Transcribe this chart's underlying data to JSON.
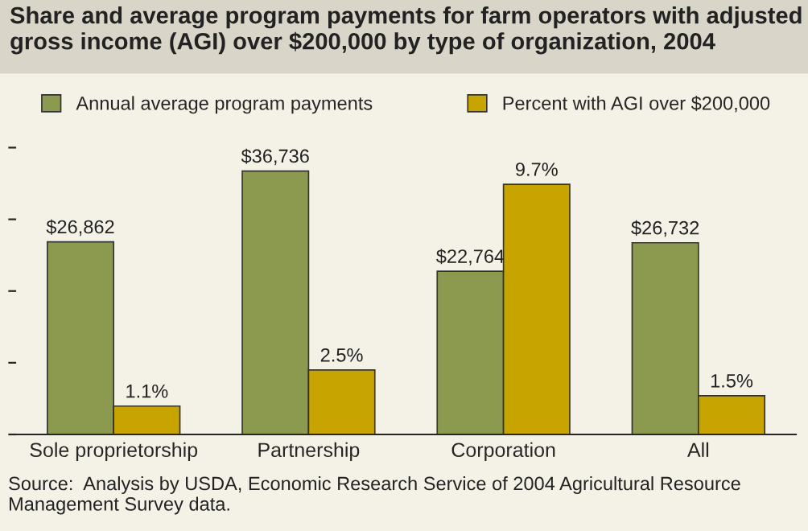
{
  "chart_data": {
    "type": "bar",
    "title": "Share and average program payments for farm operators with adjusted gross income (AGI) over $200,000 by type of organization, 2004",
    "categories": [
      "Sole proprietorship",
      "Partnership",
      "Corporation",
      "All"
    ],
    "series": [
      {
        "name": "Annual average program payments",
        "color": "#8c9a4f",
        "values": [
          26862,
          36736,
          22764,
          26732
        ],
        "value_labels": [
          "$26,862",
          "$36,736",
          "$22,764",
          "$26,732"
        ]
      },
      {
        "name": "Percent with AGI over $200,000",
        "color": "#c8a400",
        "axis": "y2",
        "values": [
          1.1,
          2.5,
          9.7,
          1.5
        ],
        "value_labels": [
          "1.1%",
          "2.5%",
          "9.7%",
          "1.5%"
        ]
      }
    ],
    "legend": "top",
    "grid": false,
    "tick_labels": "x",
    "annotations": [
      "Source:  Analysis by USDA, Economic Research Service of 2004 Agricultural Resource Management Survey data."
    ]
  }
}
